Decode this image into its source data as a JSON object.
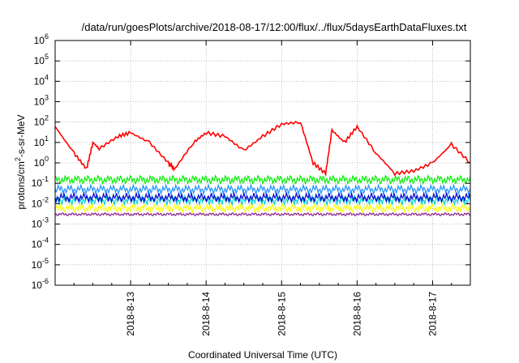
{
  "chart_data": {
    "type": "line",
    "title": "/data/run/goesPlots/archive/2018-08-17/12:00/flux/../flux/5daysEarthDataFluxes.txt",
    "xlabel": "Coordinated Universal Time (UTC)",
    "ylabel": "protons/cm²-s-sr-MeV",
    "y_scale": "log",
    "ylim": [
      1e-06,
      1000000.0
    ],
    "y_ticks": [
      {
        "base": "10",
        "exp": "-6"
      },
      {
        "base": "10",
        "exp": "-5"
      },
      {
        "base": "10",
        "exp": "-4"
      },
      {
        "base": "10",
        "exp": "-3"
      },
      {
        "base": "10",
        "exp": "-2"
      },
      {
        "base": "10",
        "exp": "-1"
      },
      {
        "base": "10",
        "exp": "0"
      },
      {
        "base": "10",
        "exp": "1"
      },
      {
        "base": "10",
        "exp": "2"
      },
      {
        "base": "10",
        "exp": "3"
      },
      {
        "base": "10",
        "exp": "4"
      },
      {
        "base": "10",
        "exp": "5"
      },
      {
        "base": "10",
        "exp": "6"
      }
    ],
    "x_range_days": [
      "2018-08-12",
      "2018-08-17"
    ],
    "x_ticks": [
      "2018-8-13",
      "2018-8-14",
      "2018-8-15",
      "2018-8-16",
      "2018-8-17"
    ],
    "grid": true,
    "series": [
      {
        "color": "#ff0000",
        "x": [
          "2018-08-12 00:00",
          "2018-08-12 06:00",
          "2018-08-12 10:00",
          "2018-08-12 12:00",
          "2018-08-12 14:00",
          "2018-08-12 20:00",
          "2018-08-13 00:00",
          "2018-08-13 06:00",
          "2018-08-13 12:00",
          "2018-08-13 14:00",
          "2018-08-13 20:00",
          "2018-08-14 00:00",
          "2018-08-14 06:00",
          "2018-08-14 12:00",
          "2018-08-14 18:00",
          "2018-08-15 00:00",
          "2018-08-15 06:00",
          "2018-08-15 10:00",
          "2018-08-15 14:00",
          "2018-08-15 16:00",
          "2018-08-15 20:00",
          "2018-08-16 00:00",
          "2018-08-16 06:00",
          "2018-08-16 12:00",
          "2018-08-16 18:00",
          "2018-08-17 00:00",
          "2018-08-17 06:00",
          "2018-08-17 12:00"
        ],
        "y": [
          60,
          3,
          0.5,
          10,
          5,
          20,
          30,
          10,
          1,
          0.5,
          10,
          30,
          20,
          4,
          20,
          80,
          100,
          1,
          0.3,
          40,
          10,
          60,
          3,
          0.3,
          0.4,
          1,
          8,
          1
        ]
      },
      {
        "color": "#00ee00",
        "x": [
          "2018-08-12 00:00",
          "2018-08-17 12:00"
        ],
        "y": [
          0.15,
          0.15
        ]
      },
      {
        "color": "#1e90ff",
        "x": [
          "2018-08-12 00:00",
          "2018-08-17 12:00"
        ],
        "y": [
          0.05,
          0.05
        ]
      },
      {
        "color": "#0000cd",
        "x": [
          "2018-08-12 00:00",
          "2018-08-17 12:00"
        ],
        "y": [
          0.02,
          0.02
        ]
      },
      {
        "color": "#00ced1",
        "x": [
          "2018-08-12 00:00",
          "2018-08-17 12:00"
        ],
        "y": [
          0.015,
          0.015
        ]
      },
      {
        "color": "#ffff00",
        "x": [
          "2018-08-12 00:00",
          "2018-08-17 12:00"
        ],
        "y": [
          0.006,
          0.006
        ]
      },
      {
        "color": "#8b1a8b",
        "x": [
          "2018-08-12 00:00",
          "2018-08-17 12:00"
        ],
        "y": [
          0.003,
          0.003
        ]
      }
    ]
  }
}
